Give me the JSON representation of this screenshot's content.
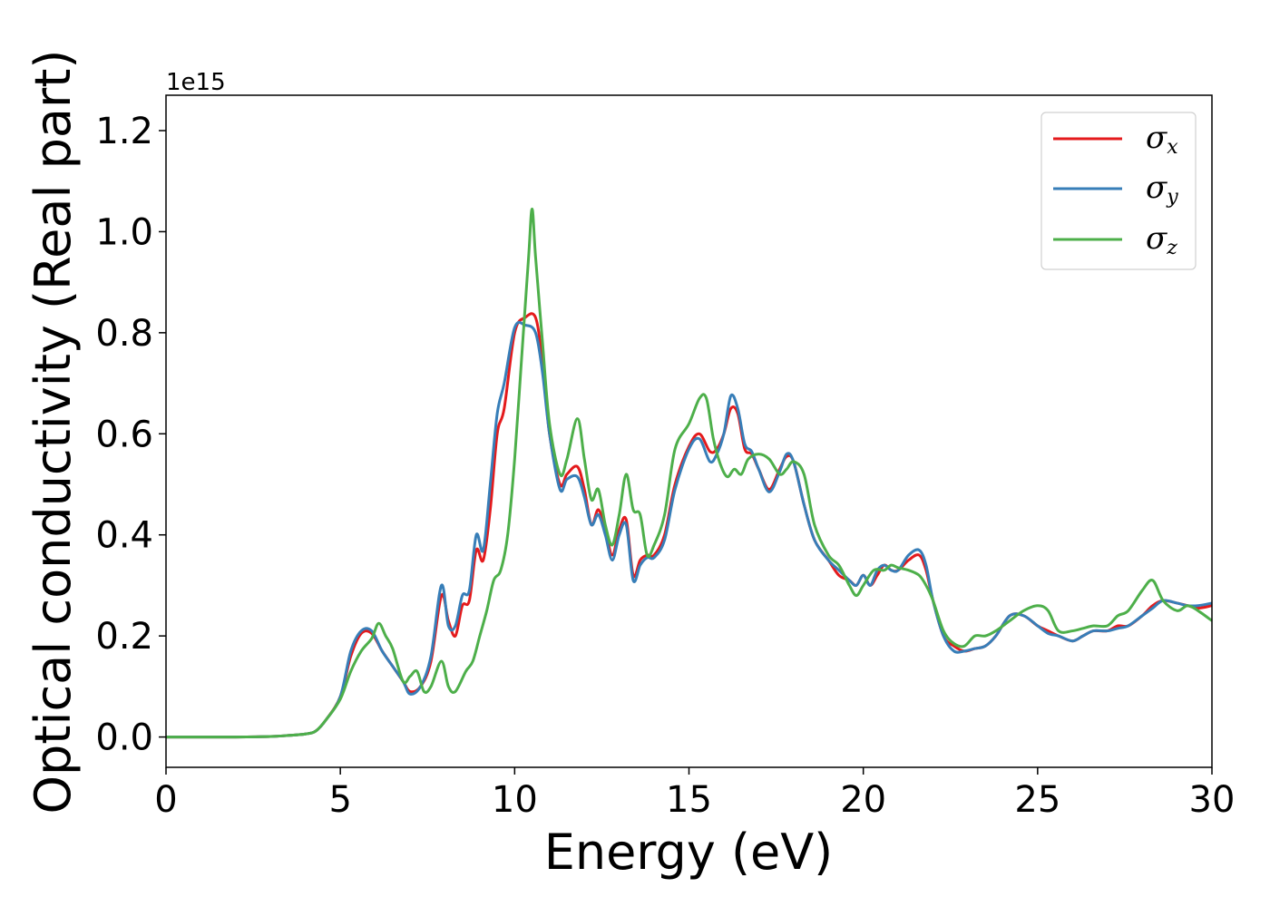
{
  "chart_data": {
    "type": "line",
    "title": "",
    "xlabel": "Energy (eV)",
    "ylabel": "Optical conductivity (Real part)",
    "y_offset_label": "1e15",
    "xlim": [
      0,
      30
    ],
    "ylim": [
      -0.06,
      1.27
    ],
    "xticks": [
      0,
      5,
      10,
      15,
      20,
      25,
      30
    ],
    "yticks": [
      0.0,
      0.2,
      0.4,
      0.6,
      0.8,
      1.0,
      1.2
    ],
    "xtick_labels": [
      "0",
      "5",
      "10",
      "15",
      "20",
      "25",
      "30"
    ],
    "ytick_labels": [
      "0.0",
      "0.2",
      "0.4",
      "0.6",
      "0.8",
      "1.0",
      "1.2"
    ],
    "grid": false,
    "legend_position": "top-right",
    "series": [
      {
        "name": "σx",
        "legend_symbol": "σ",
        "legend_subscript": "x",
        "color": "#e41a1c",
        "x": [
          0,
          1,
          2,
          3,
          3.5,
          4,
          4.3,
          4.6,
          5,
          5.3,
          5.6,
          5.9,
          6.2,
          6.5,
          6.8,
          7.0,
          7.3,
          7.6,
          7.9,
          8.1,
          8.3,
          8.5,
          8.7,
          8.9,
          9.1,
          9.3,
          9.5,
          9.7,
          10.0,
          10.3,
          10.6,
          10.8,
          11.0,
          11.3,
          11.5,
          11.8,
          12.0,
          12.2,
          12.4,
          12.6,
          12.8,
          13.0,
          13.2,
          13.4,
          13.6,
          13.8,
          14.0,
          14.3,
          14.6,
          15.0,
          15.3,
          15.6,
          15.8,
          16.0,
          16.2,
          16.4,
          16.6,
          16.8,
          17.0,
          17.3,
          17.6,
          17.8,
          18.0,
          18.3,
          18.6,
          19.0,
          19.3,
          19.6,
          19.8,
          20.0,
          20.2,
          20.4,
          20.6,
          20.8,
          21.0,
          21.3,
          21.6,
          21.8,
          22.0,
          22.3,
          22.6,
          22.9,
          23.2,
          23.5,
          23.8,
          24.2,
          24.6,
          25.0,
          25.3,
          25.6,
          26.0,
          26.3,
          26.6,
          27.0,
          27.3,
          27.6,
          28.0,
          28.3,
          28.6,
          29.0,
          29.3,
          29.6,
          30.0
        ],
        "y": [
          0,
          0,
          0,
          0.001,
          0.003,
          0.006,
          0.012,
          0.035,
          0.08,
          0.16,
          0.205,
          0.205,
          0.17,
          0.14,
          0.11,
          0.09,
          0.1,
          0.15,
          0.28,
          0.23,
          0.2,
          0.26,
          0.27,
          0.37,
          0.35,
          0.45,
          0.6,
          0.65,
          0.8,
          0.83,
          0.83,
          0.74,
          0.6,
          0.5,
          0.52,
          0.535,
          0.49,
          0.42,
          0.45,
          0.41,
          0.36,
          0.41,
          0.43,
          0.32,
          0.35,
          0.36,
          0.36,
          0.4,
          0.5,
          0.575,
          0.6,
          0.565,
          0.57,
          0.6,
          0.65,
          0.64,
          0.57,
          0.56,
          0.53,
          0.49,
          0.53,
          0.555,
          0.545,
          0.46,
          0.39,
          0.35,
          0.32,
          0.31,
          0.3,
          0.32,
          0.3,
          0.32,
          0.34,
          0.33,
          0.33,
          0.35,
          0.36,
          0.33,
          0.27,
          0.2,
          0.18,
          0.17,
          0.175,
          0.18,
          0.2,
          0.24,
          0.24,
          0.22,
          0.21,
          0.2,
          0.19,
          0.2,
          0.21,
          0.21,
          0.22,
          0.22,
          0.24,
          0.26,
          0.27,
          0.265,
          0.26,
          0.255,
          0.26
        ]
      },
      {
        "name": "σy",
        "legend_symbol": "σ",
        "legend_subscript": "y",
        "color": "#377eb8",
        "x": [
          0,
          1,
          2,
          3,
          3.5,
          4,
          4.3,
          4.6,
          5,
          5.3,
          5.6,
          5.9,
          6.2,
          6.5,
          6.8,
          7.0,
          7.3,
          7.6,
          7.9,
          8.1,
          8.3,
          8.5,
          8.7,
          8.9,
          9.1,
          9.3,
          9.5,
          9.7,
          10.0,
          10.3,
          10.6,
          10.8,
          11.0,
          11.3,
          11.5,
          11.8,
          12.0,
          12.2,
          12.4,
          12.6,
          12.8,
          13.0,
          13.2,
          13.4,
          13.6,
          13.8,
          14.0,
          14.3,
          14.6,
          15.0,
          15.3,
          15.6,
          15.8,
          16.0,
          16.2,
          16.4,
          16.6,
          16.8,
          17.0,
          17.3,
          17.6,
          17.8,
          18.0,
          18.3,
          18.6,
          19.0,
          19.3,
          19.6,
          19.8,
          20.0,
          20.2,
          20.4,
          20.6,
          20.8,
          21.0,
          21.3,
          21.6,
          21.8,
          22.0,
          22.3,
          22.6,
          22.9,
          23.2,
          23.5,
          23.8,
          24.2,
          24.6,
          25.0,
          25.3,
          25.6,
          26.0,
          26.3,
          26.6,
          27.0,
          27.3,
          27.6,
          28.0,
          28.3,
          28.6,
          29.0,
          29.3,
          29.6,
          30.0
        ],
        "y": [
          0,
          0,
          0,
          0.001,
          0.003,
          0.006,
          0.012,
          0.035,
          0.08,
          0.17,
          0.21,
          0.21,
          0.17,
          0.14,
          0.11,
          0.085,
          0.1,
          0.16,
          0.3,
          0.22,
          0.22,
          0.28,
          0.29,
          0.4,
          0.37,
          0.5,
          0.64,
          0.7,
          0.81,
          0.815,
          0.8,
          0.72,
          0.6,
          0.49,
          0.51,
          0.515,
          0.475,
          0.42,
          0.44,
          0.4,
          0.35,
          0.4,
          0.42,
          0.31,
          0.34,
          0.355,
          0.355,
          0.39,
          0.49,
          0.57,
          0.59,
          0.545,
          0.56,
          0.6,
          0.675,
          0.65,
          0.58,
          0.565,
          0.53,
          0.485,
          0.525,
          0.56,
          0.545,
          0.46,
          0.39,
          0.35,
          0.33,
          0.31,
          0.3,
          0.32,
          0.3,
          0.33,
          0.34,
          0.33,
          0.33,
          0.36,
          0.37,
          0.34,
          0.27,
          0.2,
          0.17,
          0.17,
          0.175,
          0.18,
          0.2,
          0.24,
          0.24,
          0.22,
          0.205,
          0.2,
          0.19,
          0.2,
          0.21,
          0.21,
          0.215,
          0.22,
          0.24,
          0.255,
          0.27,
          0.265,
          0.26,
          0.26,
          0.265
        ]
      },
      {
        "name": "σz",
        "legend_symbol": "σ",
        "legend_subscript": "z",
        "color": "#4daf4a",
        "x": [
          0,
          1,
          2,
          3,
          3.5,
          4,
          4.3,
          4.6,
          5,
          5.3,
          5.6,
          5.9,
          6.1,
          6.3,
          6.5,
          6.8,
          7.0,
          7.2,
          7.4,
          7.6,
          7.9,
          8.1,
          8.3,
          8.6,
          8.8,
          9.0,
          9.2,
          9.4,
          9.6,
          9.8,
          10.0,
          10.2,
          10.4,
          10.5,
          10.6,
          10.8,
          11.0,
          11.3,
          11.5,
          11.8,
          12.0,
          12.2,
          12.4,
          12.6,
          12.8,
          13.0,
          13.2,
          13.4,
          13.6,
          13.8,
          14.0,
          14.3,
          14.6,
          15.0,
          15.3,
          15.5,
          15.7,
          15.9,
          16.1,
          16.3,
          16.5,
          16.7,
          17.0,
          17.3,
          17.6,
          17.8,
          18.0,
          18.3,
          18.6,
          19.0,
          19.3,
          19.6,
          19.8,
          20.0,
          20.3,
          20.6,
          20.8,
          21.0,
          21.3,
          21.6,
          21.8,
          22.0,
          22.3,
          22.6,
          22.9,
          23.2,
          23.5,
          23.8,
          24.2,
          24.6,
          25.0,
          25.3,
          25.6,
          26.0,
          26.3,
          26.6,
          27.0,
          27.3,
          27.6,
          28.0,
          28.3,
          28.6,
          29.0,
          29.3,
          29.6,
          30.0
        ],
        "y": [
          0,
          0,
          0,
          0.001,
          0.003,
          0.006,
          0.012,
          0.035,
          0.075,
          0.13,
          0.17,
          0.195,
          0.225,
          0.2,
          0.175,
          0.11,
          0.12,
          0.13,
          0.09,
          0.1,
          0.15,
          0.1,
          0.09,
          0.13,
          0.15,
          0.2,
          0.25,
          0.31,
          0.33,
          0.4,
          0.55,
          0.75,
          0.95,
          1.045,
          0.95,
          0.78,
          0.62,
          0.52,
          0.55,
          0.63,
          0.55,
          0.47,
          0.49,
          0.42,
          0.38,
          0.44,
          0.52,
          0.45,
          0.44,
          0.36,
          0.38,
          0.44,
          0.57,
          0.62,
          0.67,
          0.67,
          0.59,
          0.54,
          0.515,
          0.53,
          0.52,
          0.55,
          0.56,
          0.55,
          0.52,
          0.53,
          0.545,
          0.52,
          0.42,
          0.36,
          0.34,
          0.3,
          0.28,
          0.3,
          0.33,
          0.33,
          0.34,
          0.335,
          0.33,
          0.32,
          0.3,
          0.27,
          0.21,
          0.185,
          0.18,
          0.2,
          0.2,
          0.21,
          0.23,
          0.25,
          0.26,
          0.25,
          0.21,
          0.21,
          0.215,
          0.22,
          0.22,
          0.24,
          0.25,
          0.29,
          0.31,
          0.27,
          0.25,
          0.26,
          0.25,
          0.23
        ]
      }
    ]
  }
}
